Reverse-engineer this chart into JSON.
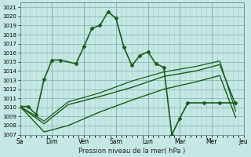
{
  "background_color": "#c5e8e5",
  "grid_color_major": "#8ab8b5",
  "grid_color_minor": "#a8d0cc",
  "line_color": "#1a5c1a",
  "figsize": [
    3.2,
    2.0
  ],
  "dpi": 100,
  "ylim": [
    1007,
    1021.5
  ],
  "yticks": [
    1007,
    1008,
    1009,
    1010,
    1011,
    1012,
    1013,
    1014,
    1015,
    1016,
    1017,
    1018,
    1019,
    1020,
    1021
  ],
  "xlim": [
    0,
    7
  ],
  "day_positions": [
    0,
    1,
    2,
    3,
    4,
    5,
    6,
    7
  ],
  "day_labels": [
    "Sa",
    "Dim",
    "Ven",
    "Sam",
    "Lun",
    "Mar",
    "Mer",
    "Jeu"
  ],
  "xlabel": "Pression niveau de la mer( hPa )",
  "series": [
    {
      "x": [
        0.0,
        0.25,
        0.5,
        0.75,
        1.0,
        1.25,
        1.75,
        2.0,
        2.25,
        2.5,
        2.75,
        3.0,
        3.25,
        3.5,
        3.75,
        4.0,
        4.25,
        4.5,
        4.75,
        5.0,
        5.25,
        5.75,
        6.25,
        6.75
      ],
      "y": [
        1010.1,
        1010.1,
        1009.2,
        1013.1,
        1015.2,
        1015.2,
        1014.8,
        1016.7,
        1018.7,
        1019.0,
        1020.5,
        1019.8,
        1016.6,
        1014.6,
        1015.7,
        1016.1,
        1014.8,
        1014.4,
        1007.0,
        1008.8,
        1010.5,
        1010.5,
        1010.5,
        1010.5
      ],
      "marker": "D",
      "markersize": 2.5,
      "linewidth": 1.2,
      "zorder": 4
    },
    {
      "x": [
        0.0,
        0.75,
        1.5,
        2.5,
        3.5,
        4.5,
        5.5,
        6.25,
        6.75
      ],
      "y": [
        1010.1,
        1008.2,
        1010.3,
        1011.2,
        1012.2,
        1013.4,
        1014.0,
        1014.7,
        1010.3
      ],
      "marker": null,
      "markersize": 0,
      "linewidth": 1.0,
      "zorder": 3
    },
    {
      "x": [
        0.0,
        0.75,
        1.5,
        2.5,
        3.5,
        4.5,
        5.5,
        6.25,
        6.75
      ],
      "y": [
        1010.1,
        1007.3,
        1008.0,
        1009.5,
        1010.8,
        1012.0,
        1012.8,
        1013.5,
        1008.9
      ],
      "marker": null,
      "markersize": 0,
      "linewidth": 1.0,
      "zorder": 3
    },
    {
      "x": [
        0.0,
        0.75,
        1.5,
        2.5,
        3.5,
        4.5,
        5.5,
        6.25,
        6.75
      ],
      "y": [
        1010.1,
        1008.5,
        1010.6,
        1011.6,
        1012.9,
        1013.9,
        1014.5,
        1015.1,
        1009.6
      ],
      "marker": null,
      "markersize": 0,
      "linewidth": 0.9,
      "zorder": 3
    }
  ]
}
